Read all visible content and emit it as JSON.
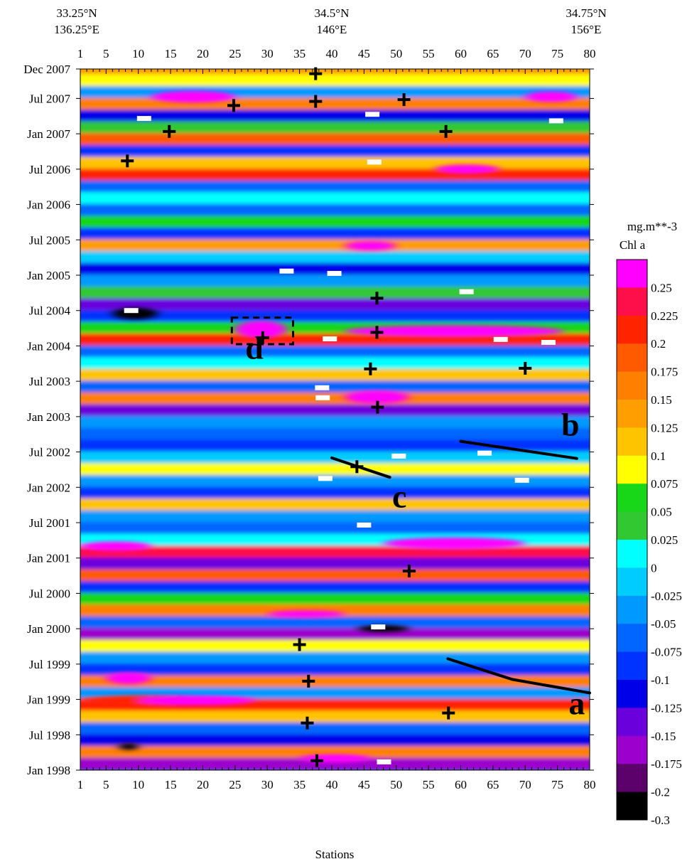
{
  "chart_data": {
    "type": "heatmap",
    "xlabel": "Stations",
    "x_ticks": [
      1,
      5,
      10,
      15,
      20,
      25,
      30,
      35,
      40,
      45,
      50,
      55,
      60,
      65,
      70,
      75,
      80
    ],
    "xlim": [
      1,
      80
    ],
    "y_ticks": [
      {
        "label": "Dec 2007",
        "month": 119
      },
      {
        "label": "Jul 2007",
        "month": 114
      },
      {
        "label": "Jan 2007",
        "month": 108
      },
      {
        "label": "Jul 2006",
        "month": 102
      },
      {
        "label": "Jan 2006",
        "month": 96
      },
      {
        "label": "Jul 2005",
        "month": 90
      },
      {
        "label": "Jan 2005",
        "month": 84
      },
      {
        "label": "Jul 2004",
        "month": 78
      },
      {
        "label": "Jan 2004",
        "month": 72
      },
      {
        "label": "Jul 2003",
        "month": 66
      },
      {
        "label": "Jan 2003",
        "month": 60
      },
      {
        "label": "Jul 2002",
        "month": 54
      },
      {
        "label": "Jan 2002",
        "month": 48
      },
      {
        "label": "Jul 2001",
        "month": 42
      },
      {
        "label": "Jan 2001",
        "month": 36
      },
      {
        "label": "Jul 2000",
        "month": 30
      },
      {
        "label": "Jan 2000",
        "month": 24
      },
      {
        "label": "Jul 1999",
        "month": 18
      },
      {
        "label": "Jan 1999",
        "month": 12
      },
      {
        "label": "Jul 1998",
        "month": 6
      },
      {
        "label": "Jan 1998",
        "month": 0
      }
    ],
    "ylim": [
      0,
      119
    ],
    "top_labels": [
      {
        "lat": "33.25°N",
        "lon": "136.25°E",
        "station": 1
      },
      {
        "lat": "34.5°N",
        "lon": "146°E",
        "station": 40
      },
      {
        "lat": "34.75°N",
        "lon": "156°E",
        "station": 80
      }
    ],
    "colorbar": {
      "unit": "mg.m**-3",
      "variable": "Chl a",
      "levels": [
        "0.25",
        "0.225",
        "0.2",
        "0.175",
        "0.15",
        "0.125",
        "0.1",
        "0.075",
        "0.05",
        "0.025",
        "0",
        "-0.025",
        "-0.05",
        "-0.075",
        "-0.1",
        "-0.125",
        "-0.15",
        "-0.175",
        "-0.2",
        "-0.3"
      ],
      "colors": [
        "#ff00ff",
        "#ff0f4a",
        "#ff2400",
        "#ff5a00",
        "#ff8000",
        "#ff9e00",
        "#ffc400",
        "#ffff00",
        "#18d718",
        "#32c832",
        "#00ffff",
        "#00ccff",
        "#0099ff",
        "#0066ff",
        "#0033ff",
        "#0000e8",
        "#6a00dc",
        "#9c00cc",
        "#5c006c",
        "#000000"
      ]
    },
    "anomaly_bands": [
      {
        "month": 119,
        "level": 5
      },
      {
        "month": 117,
        "level": 7
      },
      {
        "month": 115,
        "level": 12
      },
      {
        "month": 113,
        "level": 4
      },
      {
        "month": 111,
        "level": 15
      },
      {
        "month": 109,
        "level": 9
      },
      {
        "month": 107,
        "level": 3
      },
      {
        "month": 105,
        "level": 14
      },
      {
        "month": 103,
        "level": 6
      },
      {
        "month": 101,
        "level": 2
      },
      {
        "month": 99,
        "level": 13
      },
      {
        "month": 97,
        "level": 10
      },
      {
        "month": 95,
        "level": 13
      },
      {
        "month": 93,
        "level": 8
      },
      {
        "month": 91,
        "level": 14
      },
      {
        "month": 89,
        "level": 5
      },
      {
        "month": 87,
        "level": 11
      },
      {
        "month": 85,
        "level": 15
      },
      {
        "month": 83,
        "level": 12
      },
      {
        "month": 81,
        "level": 9
      },
      {
        "month": 79,
        "level": 16
      },
      {
        "month": 77,
        "level": 14
      },
      {
        "month": 75,
        "level": 8
      },
      {
        "month": 73,
        "level": 2
      },
      {
        "month": 71,
        "level": 13
      },
      {
        "month": 69,
        "level": 10
      },
      {
        "month": 67,
        "level": 6
      },
      {
        "month": 65,
        "level": 13
      },
      {
        "month": 63,
        "level": 4
      },
      {
        "month": 61,
        "level": 16
      },
      {
        "month": 59,
        "level": 12
      },
      {
        "month": 57,
        "level": 13
      },
      {
        "month": 55,
        "level": 14
      },
      {
        "month": 53,
        "level": 11
      },
      {
        "month": 51,
        "level": 7
      },
      {
        "month": 49,
        "level": 12
      },
      {
        "month": 47,
        "level": 14
      },
      {
        "month": 45,
        "level": 6
      },
      {
        "month": 43,
        "level": 12
      },
      {
        "month": 41,
        "level": 13
      },
      {
        "month": 39,
        "level": 10
      },
      {
        "month": 37,
        "level": 1
      },
      {
        "month": 35,
        "level": 16
      },
      {
        "month": 33,
        "level": 3
      },
      {
        "month": 31,
        "level": 14
      },
      {
        "month": 29,
        "level": 8
      },
      {
        "month": 27,
        "level": 4
      },
      {
        "month": 25,
        "level": 13
      },
      {
        "month": 23,
        "level": 17
      },
      {
        "month": 21,
        "level": 7
      },
      {
        "month": 19,
        "level": 12
      },
      {
        "month": 17,
        "level": 14
      },
      {
        "month": 15,
        "level": 4
      },
      {
        "month": 13,
        "level": 12
      },
      {
        "month": 11,
        "level": 2
      },
      {
        "month": 9,
        "level": 6
      },
      {
        "month": 7,
        "level": 13
      },
      {
        "month": 5,
        "level": 15
      },
      {
        "month": 3,
        "level": 4
      },
      {
        "month": 1,
        "level": 17
      }
    ],
    "patches": [
      {
        "station_start": 12,
        "station_end": 25,
        "month": 114.3,
        "half_height": 1.0,
        "level": 0
      },
      {
        "station_start": 70,
        "station_end": 78,
        "month": 114.3,
        "half_height": 0.9,
        "level": 0
      },
      {
        "station_start": 56,
        "station_end": 66,
        "month": 102.0,
        "half_height": 0.8,
        "level": 0
      },
      {
        "station_start": 42,
        "station_end": 50,
        "month": 89.0,
        "half_height": 0.8,
        "level": 0
      },
      {
        "station_start": 25,
        "station_end": 33,
        "month": 74.8,
        "half_height": 1.5,
        "level": 0
      },
      {
        "station_start": 42,
        "station_end": 76,
        "month": 74.5,
        "half_height": 1.0,
        "level": 0
      },
      {
        "station_start": 6,
        "station_end": 13,
        "month": 77.5,
        "half_height": 1.0,
        "level": 19
      },
      {
        "station_start": 42,
        "station_end": 52,
        "month": 63.3,
        "half_height": 1.1,
        "level": 0
      },
      {
        "station_start": 1,
        "station_end": 12,
        "month": 38.0,
        "half_height": 0.8,
        "level": 0
      },
      {
        "station_start": 48,
        "station_end": 70,
        "month": 38.5,
        "half_height": 1.0,
        "level": 0
      },
      {
        "station_start": 30,
        "station_end": 42,
        "month": 26.5,
        "half_height": 0.6,
        "level": 0
      },
      {
        "station_start": 44,
        "station_end": 52,
        "month": 24.0,
        "half_height": 0.6,
        "level": 19
      },
      {
        "station_start": 5,
        "station_end": 12,
        "month": 15.6,
        "half_height": 1.0,
        "level": 0
      },
      {
        "station_start": 1,
        "station_end": 25,
        "month": 11.8,
        "half_height": 0.9,
        "level": 2
      },
      {
        "station_start": 10,
        "station_end": 28,
        "month": 11.8,
        "half_height": 0.8,
        "level": 0
      },
      {
        "station_start": 35,
        "station_end": 46,
        "month": 2.0,
        "half_height": 0.7,
        "level": 0
      },
      {
        "station_start": 7,
        "station_end": 10,
        "month": 4.0,
        "half_height": 0.6,
        "level": 19
      }
    ],
    "plus_markers": [
      {
        "station": 37.5,
        "month": 118.2
      },
      {
        "station": 37.5,
        "month": 113.5
      },
      {
        "station": 24.8,
        "month": 112.8
      },
      {
        "station": 51.2,
        "month": 113.8
      },
      {
        "station": 14.8,
        "month": 108.4
      },
      {
        "station": 57.7,
        "month": 108.4
      },
      {
        "station": 8.3,
        "month": 103.4
      },
      {
        "station": 47.0,
        "month": 80.1
      },
      {
        "station": 47.0,
        "month": 74.3
      },
      {
        "station": 29.3,
        "month": 73.4
      },
      {
        "station": 46.0,
        "month": 68.1
      },
      {
        "station": 70.0,
        "month": 68.2
      },
      {
        "station": 47.1,
        "month": 61.6
      },
      {
        "station": 43.9,
        "month": 51.5
      },
      {
        "station": 52.0,
        "month": 33.8
      },
      {
        "station": 35.0,
        "month": 21.3
      },
      {
        "station": 36.4,
        "month": 15.1
      },
      {
        "station": 58.1,
        "month": 9.7
      },
      {
        "station": 36.2,
        "month": 8.0
      },
      {
        "station": 37.7,
        "month": 1.6
      }
    ],
    "minus_markers": [
      {
        "station": 10.9,
        "month": 110.6
      },
      {
        "station": 46.3,
        "month": 111.3
      },
      {
        "station": 74.8,
        "month": 110.2
      },
      {
        "station": 46.6,
        "month": 103.2
      },
      {
        "station": 40.4,
        "month": 84.3
      },
      {
        "station": 33.0,
        "month": 84.7
      },
      {
        "station": 60.9,
        "month": 81.2
      },
      {
        "station": 8.9,
        "month": 78.0
      },
      {
        "station": 39.7,
        "month": 73.2
      },
      {
        "station": 66.2,
        "month": 73.1
      },
      {
        "station": 73.6,
        "month": 72.6
      },
      {
        "station": 38.5,
        "month": 64.9
      },
      {
        "station": 38.6,
        "month": 63.2
      },
      {
        "station": 50.4,
        "month": 53.3
      },
      {
        "station": 63.7,
        "month": 53.8
      },
      {
        "station": 39.0,
        "month": 49.5
      },
      {
        "station": 69.5,
        "month": 49.2
      },
      {
        "station": 45.0,
        "month": 41.6
      },
      {
        "station": 47.2,
        "month": 24.3
      },
      {
        "station": 48.1,
        "month": 1.4
      }
    ],
    "trend_lines": [
      {
        "label": "a",
        "points": [
          [
            58,
            18.9
          ],
          [
            68,
            15.4
          ],
          [
            80,
            13.1
          ]
        ],
        "label_at": [
          78,
          9.5
        ]
      },
      {
        "label": "b",
        "points": [
          [
            60,
            55.8
          ],
          [
            78,
            52.9
          ]
        ],
        "label_at": [
          77,
          56.8
        ]
      },
      {
        "label": "c",
        "points": [
          [
            40,
            53.0
          ],
          [
            49,
            49.7
          ]
        ],
        "label_at": [
          50.5,
          44.6
        ]
      }
    ],
    "highlight_box": {
      "label": "d",
      "station_start": 24.5,
      "station_end": 34.0,
      "month_start": 72.3,
      "month_end": 76.8,
      "label_at": [
        28.0,
        69.8
      ]
    }
  }
}
